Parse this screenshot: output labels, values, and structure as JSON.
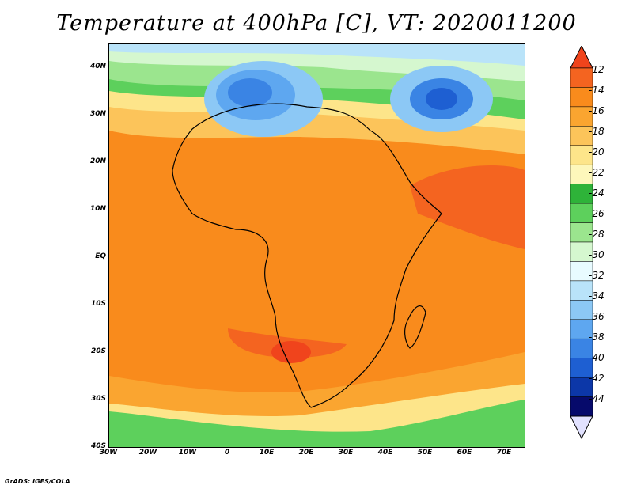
{
  "title": "Temperature at 400hPa [C], VT: 2020011200",
  "footer": "GrADS: IGES/COLA",
  "axes": {
    "y_ticks": [
      "40N",
      "30N",
      "20N",
      "10N",
      "EQ",
      "10S",
      "20S",
      "30S",
      "40S"
    ],
    "x_ticks": [
      "30W",
      "20W",
      "10W",
      "0",
      "10E",
      "20E",
      "30E",
      "40E",
      "50E",
      "60E",
      "70E"
    ]
  },
  "colorbar": {
    "labels": [
      "-12",
      "-14",
      "-16",
      "-18",
      "-20",
      "-22",
      "-24",
      "-26",
      "-28",
      "-30",
      "-32",
      "-34",
      "-36",
      "-38",
      "-40",
      "-42",
      "-44"
    ],
    "colors": [
      "#f0441c",
      "#f46420",
      "#f98b1c",
      "#faa530",
      "#fcc45a",
      "#fde58a",
      "#fdf7bb",
      "#2eb339",
      "#5dd05c",
      "#9be58e",
      "#d5f7cf",
      "#e8fbff",
      "#b9e3f9",
      "#8cc8f5",
      "#5ea7f0",
      "#3a84e4",
      "#1e5fd2",
      "#0c37a8",
      "#060a6b",
      "#e2e2ff"
    ]
  },
  "map": {
    "region": "Africa",
    "lon_range": [
      "30W",
      "75E"
    ],
    "lat_range": [
      "40S",
      "45N"
    ]
  }
}
